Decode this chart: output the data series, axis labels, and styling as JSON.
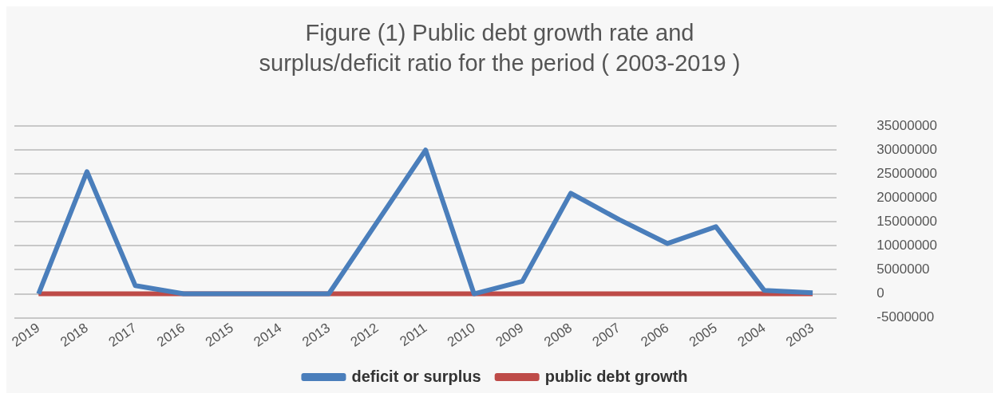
{
  "chart_data": {
    "type": "line",
    "title": "Figure (1) Public debt growth rate and surplus/deficit ratio for the period ( 2003-2019 )",
    "categories": [
      "2019",
      "2018",
      "2017",
      "2016",
      "2015",
      "2014",
      "2013",
      "2012",
      "2011",
      "2010",
      "2009",
      "2008",
      "2007",
      "2006",
      "2005",
      "2004",
      "2003"
    ],
    "series": [
      {
        "name": "deficit or surplus",
        "color": "#4a7ebb",
        "values": [
          0,
          25500000,
          1700000,
          0,
          0,
          0,
          0,
          15000000,
          30000000,
          0,
          2600000,
          21000000,
          15500000,
          10500000,
          14000000,
          700000,
          200000
        ]
      },
      {
        "name": "public debt growth",
        "color": "#be4b48",
        "values": [
          0,
          0,
          0,
          0,
          0,
          0,
          0,
          0,
          0,
          0,
          0,
          0,
          0,
          0,
          0,
          0,
          0
        ]
      }
    ],
    "ylim": [
      -5000000,
      35000000
    ],
    "yticks": [
      -5000000,
      0,
      5000000,
      10000000,
      15000000,
      20000000,
      25000000,
      30000000,
      35000000
    ],
    "grid": "y",
    "legend": "bottom",
    "marker": "none",
    "line_style": "solid"
  }
}
